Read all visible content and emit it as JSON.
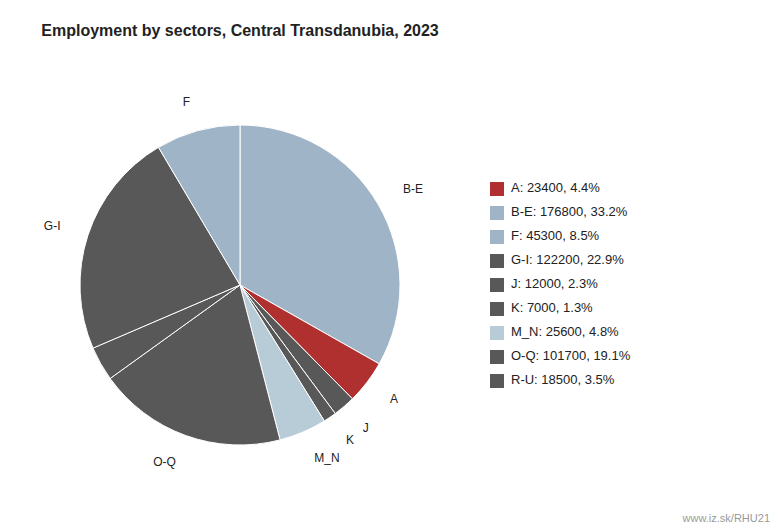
{
  "chart_data": {
    "type": "pie",
    "title": "Employment by sectors, Central Transdanubia, 2023",
    "categories": [
      "B-E",
      "A",
      "J",
      "K",
      "M_N",
      "O-Q",
      null,
      "G-I",
      "F"
    ],
    "values": [
      176800,
      23400,
      12000,
      7000,
      25600,
      101700,
      18500,
      122200,
      45300
    ],
    "colors": [
      "#a0b4c8",
      "#b03030",
      "#585858",
      "#585858",
      "#b8ccd8",
      "#585858",
      "#585858",
      "#585858",
      "#a0b4c8"
    ],
    "legend": "right",
    "legend_entries": [
      {
        "label": "A: 23400, 4.4%",
        "color": "#b03030"
      },
      {
        "label": "B-E: 176800, 33.2%",
        "color": "#a0b4c8"
      },
      {
        "label": "F: 45300, 8.5%",
        "color": "#a0b4c8"
      },
      {
        "label": "G-I: 122200, 22.9%",
        "color": "#585858"
      },
      {
        "label": "J: 12000, 2.3%",
        "color": "#585858"
      },
      {
        "label": "K: 7000, 1.3%",
        "color": "#585858"
      },
      {
        "label": "M_N: 25600, 4.8%",
        "color": "#b8ccd8"
      },
      {
        "label": "O-Q: 101700, 19.1%",
        "color": "#585858"
      },
      {
        "label": "R-U: 18500, 3.5%",
        "color": "#585858"
      }
    ],
    "annotations": [
      "www.iz.sk/RHU21"
    ]
  }
}
